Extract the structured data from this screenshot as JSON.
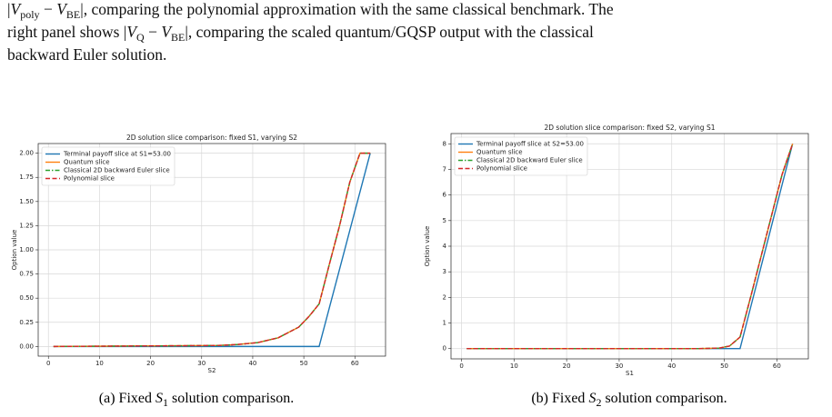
{
  "paragraph": {
    "lines": [
      [
        "|",
        "V",
        "poly",
        " − ",
        "V",
        "BE",
        "|, comparing the polynomial approximation with the same classical benchmark. The"
      ],
      [
        "right panel shows |",
        "V",
        "Q",
        " − ",
        "V",
        "BE",
        "|, comparing the scaled quantum/GQSP output with the classical"
      ],
      [
        "backward Euler solution."
      ]
    ]
  },
  "chart_data": [
    {
      "type": "line",
      "title": "2D solution slice comparison: fixed S1, varying S2",
      "x_label": "S2",
      "y_label": "Option value",
      "x": [
        1,
        33,
        37,
        41,
        45,
        49,
        51,
        53,
        55,
        57,
        59,
        61,
        63
      ],
      "series": [
        {
          "name": "Terminal payoff slice at S1=53.00",
          "color": "#1f77b4",
          "linestyle": "solid",
          "values": [
            0,
            0,
            0,
            0,
            0,
            0,
            0,
            0,
            0.4,
            0.8,
            1.2,
            1.6,
            2.0
          ]
        },
        {
          "name": "Quantum slice",
          "color": "#ff7f0e",
          "linestyle": "solid",
          "values": [
            0,
            0.01,
            0.02,
            0.04,
            0.09,
            0.2,
            0.31,
            0.44,
            0.85,
            1.25,
            1.7,
            2.0,
            2.0
          ]
        },
        {
          "name": "Classical 2D backward Euler slice",
          "color": "#2ca02c",
          "linestyle": "dashdot",
          "values": [
            0,
            0.01,
            0.02,
            0.04,
            0.09,
            0.2,
            0.31,
            0.44,
            0.85,
            1.25,
            1.7,
            2.0,
            2.0
          ]
        },
        {
          "name": "Polynomial slice",
          "color": "#d62728",
          "linestyle": "dashed",
          "values": [
            0,
            0.01,
            0.02,
            0.04,
            0.09,
            0.2,
            0.31,
            0.44,
            0.85,
            1.25,
            1.7,
            2.0,
            2.0
          ]
        }
      ],
      "xlim": [
        -2,
        66
      ],
      "xticks": [
        0,
        10,
        20,
        30,
        40,
        50,
        60
      ],
      "ylim": [
        -0.1,
        2.1
      ],
      "yticks": [
        {
          "value": 0,
          "label": "0.00"
        },
        {
          "value": 0.25,
          "label": "0.25"
        },
        {
          "value": 0.5,
          "label": "0.50"
        },
        {
          "value": 0.75,
          "label": "0.75"
        },
        {
          "value": 1,
          "label": "1.00"
        },
        {
          "value": 1.25,
          "label": "1.25"
        },
        {
          "value": 1.5,
          "label": "1.50"
        },
        {
          "value": 1.75,
          "label": "1.75"
        },
        {
          "value": 2,
          "label": "2.00"
        }
      ],
      "grid": true,
      "legend": "upper-left",
      "caption": [
        "(a) Fixed ",
        "S",
        "1",
        " solution comparison."
      ]
    },
    {
      "type": "line",
      "title": "2D solution slice comparison: fixed S2, varying S1",
      "x_label": "S1",
      "y_label": "Option value",
      "x": [
        1,
        45,
        49,
        51,
        53,
        55,
        57,
        59,
        61,
        63
      ],
      "series": [
        {
          "name": "Terminal payoff slice at S2=53.00",
          "color": "#1f77b4",
          "linestyle": "solid",
          "values": [
            0,
            0,
            0,
            0,
            0,
            1.6,
            3.2,
            4.8,
            6.4,
            8.0
          ]
        },
        {
          "name": "Quantum slice",
          "color": "#ff7f0e",
          "linestyle": "solid",
          "values": [
            0,
            0,
            0.02,
            0.1,
            0.45,
            2.0,
            3.6,
            5.2,
            6.8,
            8.0
          ]
        },
        {
          "name": "Classical 2D backward Euler slice",
          "color": "#2ca02c",
          "linestyle": "dashdot",
          "values": [
            0,
            0,
            0.02,
            0.1,
            0.45,
            2.0,
            3.6,
            5.2,
            6.8,
            8.0
          ]
        },
        {
          "name": "Polynomial slice",
          "color": "#d62728",
          "linestyle": "dashed",
          "values": [
            0,
            0,
            0.02,
            0.1,
            0.45,
            2.0,
            3.6,
            5.2,
            6.8,
            8.0
          ]
        }
      ],
      "xlim": [
        -2,
        66
      ],
      "xticks": [
        0,
        10,
        20,
        30,
        40,
        50,
        60
      ],
      "ylim": [
        -0.4,
        8.4
      ],
      "yticks": [
        0,
        1,
        2,
        3,
        4,
        5,
        6,
        7,
        8
      ],
      "grid": true,
      "legend": "upper-left",
      "caption": [
        "(b) Fixed ",
        "S",
        "2",
        " solution comparison."
      ]
    }
  ]
}
